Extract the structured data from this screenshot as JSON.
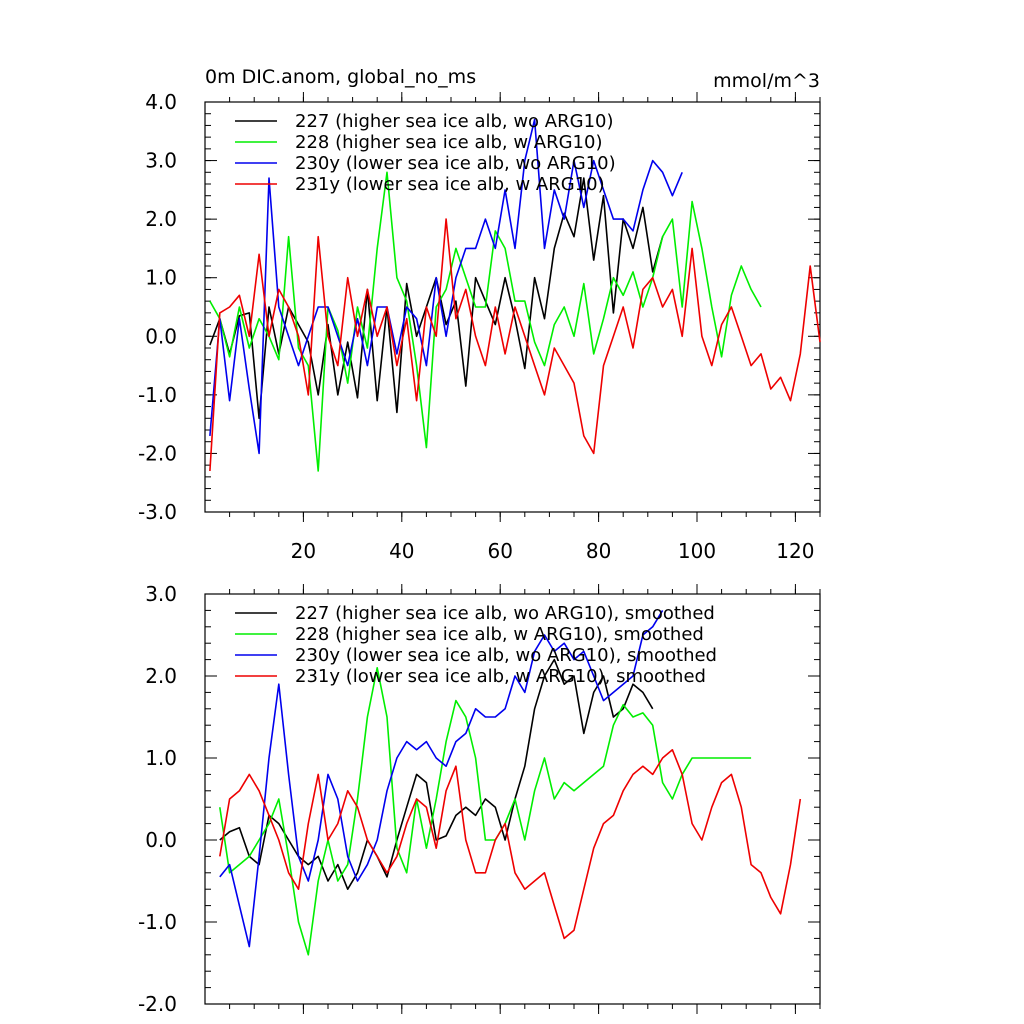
{
  "chart_data": [
    {
      "type": "line",
      "title": "0m DIC.anom, global_no_ms",
      "units": "mmol/m^3",
      "xlim": [
        0,
        125
      ],
      "ylim": [
        -3.0,
        4.0
      ],
      "xticks": [
        20,
        40,
        60,
        80,
        100,
        120
      ],
      "yticks": [
        -3.0,
        -2.0,
        -1.0,
        0.0,
        1.0,
        2.0,
        3.0,
        4.0
      ],
      "xtick_labels": [
        "20",
        "40",
        "60",
        "80",
        "100",
        "120"
      ],
      "ytick_labels": [
        "-3.0",
        "-2.0",
        "-1.0",
        "0.0",
        "1.0",
        "2.0",
        "3.0",
        "4.0"
      ],
      "legend_position": "top-left",
      "series": [
        {
          "name": "227 (higher sea ice alb, wo ARG10)",
          "color": "#000000",
          "x": [
            1,
            3,
            5,
            7,
            9,
            11,
            13,
            15,
            17,
            19,
            21,
            23,
            25,
            27,
            29,
            31,
            33,
            35,
            37,
            39,
            41,
            43,
            45,
            47,
            49,
            51,
            53,
            55,
            57,
            59,
            61,
            63,
            65,
            67,
            69,
            71,
            73,
            75,
            77,
            79,
            81,
            83,
            85,
            87,
            89,
            91,
            93
          ],
          "y": [
            -0.15,
            0.3,
            -0.3,
            0.35,
            0.4,
            -1.4,
            0.5,
            -0.3,
            0.5,
            0.2,
            -0.1,
            -1.0,
            0.2,
            -1.0,
            -0.1,
            -1.05,
            0.8,
            -1.1,
            0.5,
            -1.3,
            0.9,
            0.0,
            0.5,
            1.0,
            0.2,
            0.6,
            -0.85,
            1.0,
            0.6,
            0.2,
            1.0,
            0.3,
            -0.55,
            1.0,
            0.3,
            1.5,
            2.1,
            1.7,
            2.7,
            1.3,
            2.4,
            0.4,
            2.0,
            1.5,
            2.2,
            1.1,
            1.7
          ]
        },
        {
          "name": "228 (higher sea ice alb, w ARG10)",
          "color": "#00ee00",
          "x": [
            1,
            3,
            5,
            7,
            9,
            11,
            13,
            15,
            17,
            19,
            21,
            23,
            25,
            27,
            29,
            31,
            33,
            35,
            37,
            39,
            41,
            43,
            45,
            47,
            49,
            51,
            53,
            55,
            57,
            59,
            61,
            63,
            65,
            67,
            69,
            71,
            73,
            75,
            77,
            79,
            81,
            83,
            85,
            87,
            89,
            91,
            93,
            95,
            97,
            99,
            101,
            103,
            105,
            107,
            109,
            111,
            113
          ],
          "y": [
            0.6,
            0.3,
            -0.35,
            0.5,
            -0.2,
            0.3,
            0.0,
            -0.4,
            1.7,
            -0.2,
            -0.5,
            -2.3,
            0.5,
            0.1,
            -0.8,
            0.5,
            -0.2,
            1.5,
            2.8,
            1.0,
            0.6,
            -0.5,
            -1.9,
            0.5,
            0.8,
            1.5,
            1.0,
            0.5,
            0.5,
            1.8,
            1.5,
            0.6,
            0.6,
            -0.1,
            -0.5,
            0.2,
            0.5,
            0.0,
            0.9,
            -0.3,
            0.3,
            1.0,
            0.7,
            1.1,
            0.5,
            1.0,
            1.7,
            2.0,
            0.5,
            2.3,
            1.5,
            0.5,
            -0.35,
            0.7,
            1.2,
            0.8,
            0.5
          ]
        },
        {
          "name": "230y (lower sea ice alb, wo ARG10)",
          "color": "#0000ee",
          "x": [
            1,
            3,
            5,
            7,
            9,
            11,
            13,
            15,
            17,
            19,
            21,
            23,
            25,
            27,
            29,
            31,
            33,
            35,
            37,
            39,
            41,
            43,
            45,
            47,
            49,
            51,
            53,
            55,
            57,
            59,
            61,
            63,
            65,
            67,
            69,
            71,
            73,
            75,
            77,
            79,
            81,
            83,
            85,
            87,
            89,
            91,
            93,
            95,
            97
          ],
          "y": [
            -1.7,
            0.3,
            -1.1,
            0.3,
            -0.9,
            -2.0,
            2.7,
            0.5,
            0.0,
            -0.5,
            0.0,
            0.5,
            0.5,
            0.0,
            -0.5,
            0.3,
            -0.5,
            0.5,
            0.5,
            -0.3,
            0.5,
            0.3,
            -0.5,
            1.0,
            0.0,
            1.0,
            1.5,
            1.5,
            2.0,
            1.5,
            2.5,
            1.5,
            3.0,
            3.7,
            1.5,
            2.5,
            2.0,
            3.0,
            2.2,
            3.0,
            2.5,
            2.0,
            2.0,
            1.8,
            2.5,
            3.0,
            2.8,
            2.4,
            2.8
          ]
        },
        {
          "name": "231y (lower sea ice alb, w ARG10)",
          "color": "#ee0000",
          "x": [
            1,
            3,
            5,
            7,
            9,
            11,
            13,
            15,
            17,
            19,
            21,
            23,
            25,
            27,
            29,
            31,
            33,
            35,
            37,
            39,
            41,
            43,
            45,
            47,
            49,
            51,
            53,
            55,
            57,
            59,
            61,
            63,
            65,
            67,
            69,
            71,
            73,
            75,
            77,
            79,
            81,
            83,
            85,
            87,
            89,
            91,
            93,
            95,
            97,
            99,
            101,
            103,
            105,
            107,
            109,
            111,
            113,
            115,
            117,
            119,
            121,
            123,
            125
          ],
          "y": [
            -2.3,
            0.4,
            0.5,
            0.7,
            0.0,
            1.4,
            0.0,
            0.8,
            0.5,
            0.0,
            -1.0,
            1.7,
            0.0,
            -0.5,
            1.0,
            0.0,
            0.8,
            0.0,
            0.5,
            -0.5,
            0.3,
            -1.1,
            0.5,
            0.0,
            2.0,
            0.3,
            0.8,
            0.0,
            -0.5,
            0.5,
            -0.3,
            0.5,
            0.0,
            -0.5,
            -1.0,
            -0.2,
            -0.5,
            -0.8,
            -1.7,
            -2.0,
            -0.5,
            0.0,
            0.5,
            -0.2,
            0.8,
            1.0,
            0.5,
            0.8,
            0.0,
            1.5,
            0.0,
            -0.5,
            0.2,
            0.5,
            0.0,
            -0.5,
            -0.3,
            -0.9,
            -0.7,
            -1.1,
            -0.3,
            1.2,
            -0.1
          ]
        }
      ]
    },
    {
      "type": "line",
      "title": "",
      "xlim": [
        0,
        125
      ],
      "ylim": [
        -2.0,
        3.0
      ],
      "xticks": [
        20,
        40,
        60,
        80,
        100,
        120
      ],
      "yticks": [
        -2.0,
        -1.0,
        0.0,
        1.0,
        2.0,
        3.0
      ],
      "ytick_labels": [
        "-2.0",
        "-1.0",
        "0.0",
        "1.0",
        "2.0",
        "3.0"
      ],
      "legend_position": "top-left",
      "series": [
        {
          "name": "227 (higher sea ice alb, wo ARG10), smoothed",
          "color": "#000000",
          "x": [
            3,
            5,
            7,
            9,
            11,
            13,
            15,
            17,
            19,
            21,
            23,
            25,
            27,
            29,
            31,
            33,
            35,
            37,
            39,
            41,
            43,
            45,
            47,
            49,
            51,
            53,
            55,
            57,
            59,
            61,
            63,
            65,
            67,
            69,
            71,
            73,
            75,
            77,
            79,
            81,
            83,
            85,
            87,
            89,
            91
          ],
          "y": [
            0.0,
            0.1,
            0.15,
            -0.2,
            -0.3,
            0.3,
            0.2,
            0.0,
            -0.2,
            -0.3,
            -0.2,
            -0.5,
            -0.3,
            -0.6,
            -0.4,
            0.0,
            -0.2,
            -0.45,
            0.0,
            0.4,
            0.8,
            0.7,
            0.0,
            0.05,
            0.3,
            0.4,
            0.3,
            0.5,
            0.4,
            0.0,
            0.5,
            0.9,
            1.6,
            2.0,
            2.2,
            1.9,
            2.0,
            1.3,
            1.8,
            2.0,
            1.5,
            1.6,
            1.9,
            1.8,
            1.6
          ]
        },
        {
          "name": "228 (higher sea ice alb, w ARG10), smoothed",
          "color": "#00ee00",
          "x": [
            3,
            5,
            7,
            9,
            11,
            13,
            15,
            17,
            19,
            21,
            23,
            25,
            27,
            29,
            31,
            33,
            35,
            37,
            39,
            41,
            43,
            45,
            47,
            49,
            51,
            53,
            55,
            57,
            59,
            61,
            63,
            65,
            67,
            69,
            71,
            73,
            75,
            77,
            79,
            81,
            83,
            85,
            87,
            89,
            91,
            93,
            95,
            97,
            99,
            101,
            103,
            105,
            107,
            109,
            111
          ],
          "y": [
            0.4,
            -0.4,
            -0.3,
            -0.2,
            0.0,
            0.2,
            0.5,
            -0.2,
            -1.0,
            -1.4,
            -0.5,
            0.0,
            -0.5,
            -0.3,
            0.5,
            1.5,
            2.1,
            1.5,
            -0.1,
            -0.4,
            0.5,
            -0.1,
            0.5,
            1.2,
            1.7,
            1.5,
            1.0,
            0.0,
            0.0,
            0.2,
            0.5,
            0.0,
            0.6,
            1.0,
            0.5,
            0.7,
            0.6,
            0.7,
            0.8,
            0.9,
            1.4,
            1.65,
            1.5,
            1.55,
            1.4,
            0.7,
            0.5,
            0.8,
            1.0,
            1.0,
            1.0,
            1.0,
            1.0,
            1.0,
            1.0
          ]
        },
        {
          "name": "230y (lower sea ice alb, wo ARG10), smoothed",
          "color": "#0000ee",
          "x": [
            3,
            5,
            7,
            9,
            11,
            13,
            15,
            17,
            19,
            21,
            23,
            25,
            27,
            29,
            31,
            33,
            35,
            37,
            39,
            41,
            43,
            45,
            47,
            49,
            51,
            53,
            55,
            57,
            59,
            61,
            63,
            65,
            67,
            69,
            71,
            73,
            75,
            77,
            79,
            81,
            83,
            85,
            87,
            89,
            91,
            93
          ],
          "y": [
            -0.45,
            -0.3,
            -0.8,
            -1.3,
            -0.2,
            1.0,
            1.9,
            0.8,
            -0.2,
            -0.5,
            0.0,
            0.8,
            0.5,
            -0.2,
            -0.5,
            -0.3,
            0.0,
            0.6,
            1.0,
            1.2,
            1.1,
            1.2,
            1.0,
            0.9,
            1.2,
            1.3,
            1.6,
            1.5,
            1.5,
            1.6,
            2.0,
            1.8,
            2.3,
            2.5,
            2.3,
            2.4,
            2.2,
            2.3,
            2.0,
            1.7,
            1.8,
            1.9,
            2.0,
            2.5,
            2.6,
            2.8
          ]
        },
        {
          "name": "231y (lower sea ice alb, w ARG10), smoothed",
          "color": "#ee0000",
          "x": [
            3,
            5,
            7,
            9,
            11,
            13,
            15,
            17,
            19,
            21,
            23,
            25,
            27,
            29,
            31,
            33,
            35,
            37,
            39,
            41,
            43,
            45,
            47,
            49,
            51,
            53,
            55,
            57,
            59,
            61,
            63,
            65,
            67,
            69,
            71,
            73,
            75,
            77,
            79,
            81,
            83,
            85,
            87,
            89,
            91,
            93,
            95,
            97,
            99,
            101,
            103,
            105,
            107,
            109,
            111,
            113,
            115,
            117,
            119,
            121
          ],
          "y": [
            -0.2,
            0.5,
            0.6,
            0.8,
            0.6,
            0.3,
            0.0,
            -0.4,
            -0.6,
            0.2,
            0.8,
            0.0,
            0.2,
            0.6,
            0.4,
            0.0,
            -0.2,
            -0.4,
            -0.2,
            0.2,
            0.5,
            0.4,
            -0.1,
            0.6,
            0.9,
            0.0,
            -0.4,
            -0.4,
            0.0,
            0.2,
            -0.4,
            -0.6,
            -0.5,
            -0.4,
            -0.8,
            -1.2,
            -1.1,
            -0.6,
            -0.1,
            0.2,
            0.3,
            0.6,
            0.8,
            0.9,
            0.8,
            1.0,
            1.1,
            0.8,
            0.2,
            0.0,
            0.4,
            0.7,
            0.8,
            0.4,
            -0.3,
            -0.4,
            -0.7,
            -0.9,
            -0.3,
            0.5
          ]
        }
      ]
    }
  ]
}
